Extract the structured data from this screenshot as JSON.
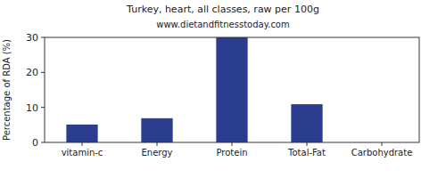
{
  "chart_data": {
    "type": "bar",
    "title": "Turkey, heart, all classes, raw per 100g",
    "subtitle": "www.dietandfitnesstoday.com",
    "y_label": "Percentage of RDA (%)",
    "categories": [
      "vitamin-c",
      "Energy",
      "Protein",
      "Total-Fat",
      "Carbohydrate"
    ],
    "values": [
      5.1,
      6.9,
      30,
      10.9,
      0
    ],
    "color": "#2a3d8f",
    "ylim": [
      0,
      30
    ],
    "yticks": [
      0,
      10,
      20,
      30
    ],
    "grid": false
  }
}
